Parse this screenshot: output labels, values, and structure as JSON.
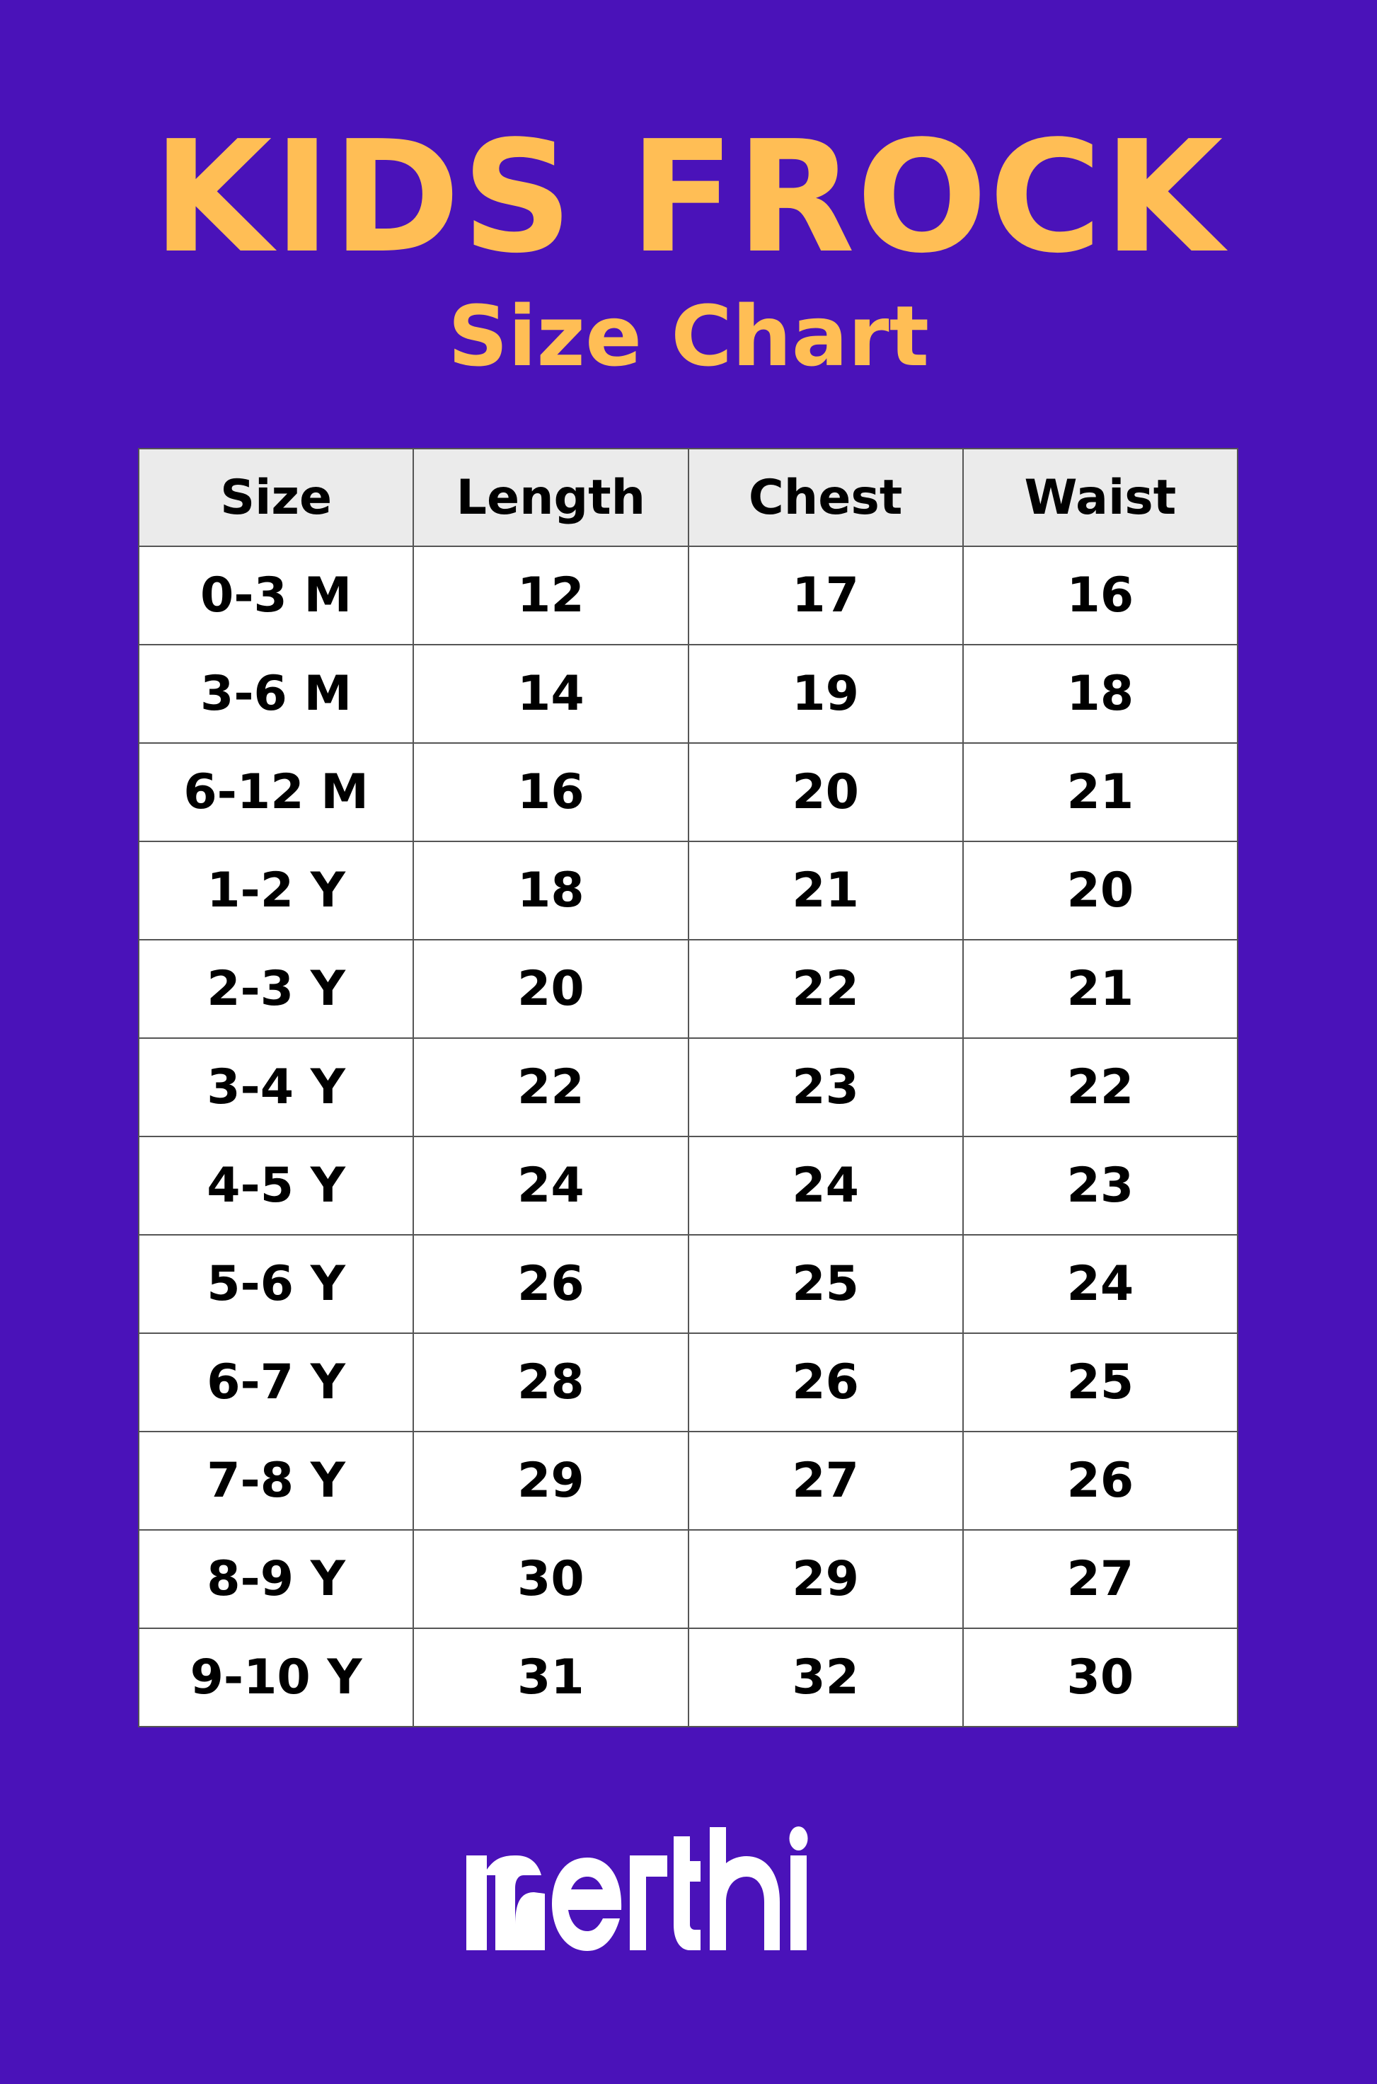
{
  "header": {
    "title": "KIDS FROCK",
    "subtitle": "Size Chart"
  },
  "colors": {
    "background": "#4a12b9",
    "title": "#ffbe55",
    "header_row": "#ebebeb"
  },
  "table": {
    "columns": [
      "Size",
      "Length",
      "Chest",
      "Waist"
    ],
    "rows": [
      [
        "0-3 M",
        "12",
        "17",
        "16"
      ],
      [
        "3-6 M",
        "14",
        "19",
        "18"
      ],
      [
        "6-12 M",
        "16",
        "20",
        "21"
      ],
      [
        "1-2 Y",
        "18",
        "21",
        "20"
      ],
      [
        "2-3 Y",
        "20",
        "22",
        "21"
      ],
      [
        "3-4 Y",
        "22",
        "23",
        "22"
      ],
      [
        "4-5 Y",
        "24",
        "24",
        "23"
      ],
      [
        "5-6 Y",
        "26",
        "25",
        "24"
      ],
      [
        "6-7 Y",
        "28",
        "26",
        "25"
      ],
      [
        "7-8 Y",
        "29",
        "27",
        "26"
      ],
      [
        "8-9 Y",
        "30",
        "29",
        "27"
      ],
      [
        "9-10 Y",
        "31",
        "32",
        "30"
      ]
    ]
  },
  "footer": {
    "logo_text": "nerthi"
  }
}
